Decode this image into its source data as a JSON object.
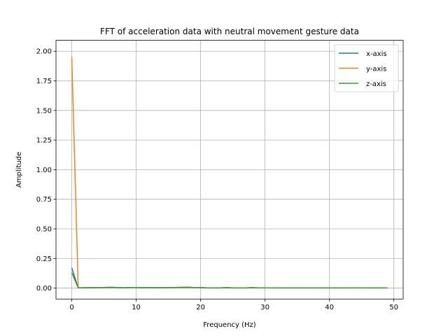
{
  "chart_data": {
    "type": "line",
    "title": "FFT of acceleration data with neutral movement gesture data",
    "xlabel": "Frequency (Hz)",
    "ylabel": "Amplitude",
    "xlim": [
      -2.45,
      51.45
    ],
    "ylim": [
      -0.0925,
      2.0925
    ],
    "xticks": [
      0,
      10,
      20,
      30,
      40,
      50
    ],
    "xtick_labels": [
      "0",
      "10",
      "20",
      "30",
      "40",
      "50"
    ],
    "yticks": [
      0.0,
      0.25,
      0.5,
      0.75,
      1.0,
      1.25,
      1.5,
      1.75,
      2.0
    ],
    "ytick_labels": [
      "0.00",
      "0.25",
      "0.50",
      "0.75",
      "1.00",
      "1.25",
      "1.50",
      "1.75",
      "2.00"
    ],
    "grid": true,
    "legend_position": "top-right",
    "series": [
      {
        "name": "x-axis",
        "color": "#1f77b4",
        "x": [
          0,
          1,
          2,
          3,
          4,
          5,
          6,
          7,
          8,
          9,
          10,
          11,
          12,
          13,
          14,
          15,
          16,
          17,
          18,
          19,
          20,
          21,
          22,
          23,
          24,
          25,
          26,
          27,
          28,
          29,
          30,
          31,
          32,
          33,
          34,
          35,
          36,
          37,
          38,
          39,
          40,
          41,
          42,
          43,
          44,
          45,
          46,
          47,
          48,
          49
        ],
        "y": [
          0.17,
          0.002,
          0.003,
          0.003,
          0.004,
          0.005,
          0.006,
          0.005,
          0.003,
          0.005,
          0.005,
          0.004,
          0.005,
          0.003,
          0.003,
          0.004,
          0.005,
          0.006,
          0.007,
          0.005,
          0.004,
          0.002,
          0.002,
          0.002,
          0.004,
          0.002,
          0.002,
          0.002,
          0.003,
          0.002,
          0.002,
          0.002,
          0.002,
          0.002,
          0.002,
          0.002,
          0.002,
          0.002,
          0.002,
          0.002,
          0.002,
          0.002,
          0.002,
          0.002,
          0.002,
          0.002,
          0.002,
          0.002,
          0.002,
          0.002
        ]
      },
      {
        "name": "y-axis",
        "color": "#ff7f0e",
        "x": [
          0,
          1,
          2,
          3,
          4,
          5,
          6,
          7,
          8,
          9,
          10,
          11,
          12,
          13,
          14,
          15,
          16,
          17,
          18,
          19,
          20,
          21,
          22,
          23,
          24,
          25,
          26,
          27,
          28,
          29,
          30,
          31,
          32,
          33,
          34,
          35,
          36,
          37,
          38,
          39,
          40,
          41,
          42,
          43,
          44,
          45,
          46,
          47,
          48,
          49
        ],
        "y": [
          1.95,
          0.004,
          0.003,
          0.004,
          0.004,
          0.005,
          0.006,
          0.005,
          0.003,
          0.005,
          0.005,
          0.004,
          0.005,
          0.003,
          0.003,
          0.004,
          0.005,
          0.006,
          0.007,
          0.005,
          0.005,
          0.002,
          0.002,
          0.002,
          0.004,
          0.002,
          0.002,
          0.002,
          0.003,
          0.002,
          0.002,
          0.002,
          0.002,
          0.002,
          0.002,
          0.002,
          0.002,
          0.002,
          0.002,
          0.002,
          0.002,
          0.002,
          0.002,
          0.002,
          0.002,
          0.002,
          0.002,
          0.002,
          0.002,
          0.002
        ]
      },
      {
        "name": "z-axis",
        "color": "#2ca02c",
        "x": [
          0,
          1,
          2,
          3,
          4,
          5,
          6,
          7,
          8,
          9,
          10,
          11,
          12,
          13,
          14,
          15,
          16,
          17,
          18,
          19,
          20,
          21,
          22,
          23,
          24,
          25,
          26,
          27,
          28,
          29,
          30,
          31,
          32,
          33,
          34,
          35,
          36,
          37,
          38,
          39,
          40,
          41,
          42,
          43,
          44,
          45,
          46,
          47,
          48,
          49
        ],
        "y": [
          0.13,
          0.002,
          0.002,
          0.003,
          0.004,
          0.005,
          0.006,
          0.005,
          0.002,
          0.005,
          0.005,
          0.003,
          0.005,
          0.003,
          0.003,
          0.004,
          0.005,
          0.006,
          0.007,
          0.004,
          0.005,
          0.001,
          0.002,
          0.001,
          0.004,
          0.001,
          0.001,
          0.001,
          0.003,
          0.002,
          0.002,
          0.001,
          0.001,
          0.001,
          0.002,
          0.001,
          0.002,
          0.001,
          0.001,
          0.002,
          0.001,
          0.002,
          0.001,
          0.001,
          0.002,
          0.002,
          0.001,
          0.001,
          0.001,
          0.001
        ]
      }
    ]
  }
}
